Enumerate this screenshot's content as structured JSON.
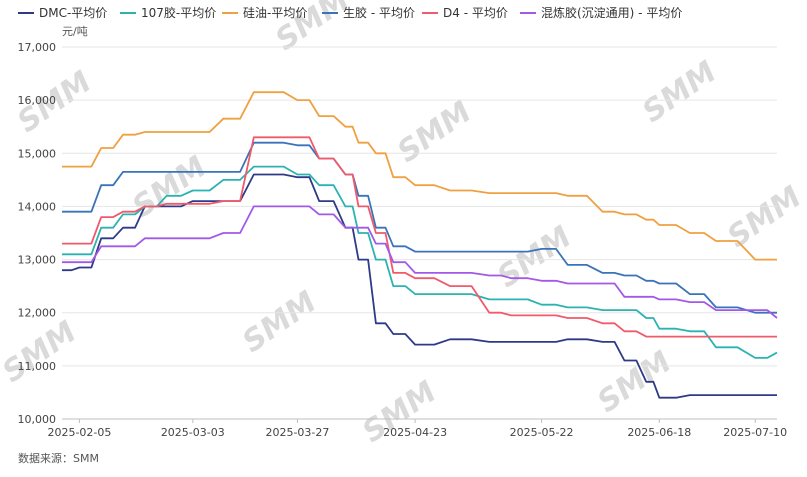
{
  "chart_data": {
    "type": "line",
    "ylabel": "元/吨",
    "ylim": [
      10000,
      17000
    ],
    "yticks": [
      10000,
      11000,
      12000,
      13000,
      14000,
      15000,
      16000,
      17000
    ],
    "ytick_labels": [
      "10,000",
      "11,000",
      "12,000",
      "13,000",
      "14,000",
      "15,000",
      "16,000",
      "17,000"
    ],
    "x_tick_labels": [
      "2025-02-05",
      "2025-03-03",
      "2025-03-27",
      "2025-04-23",
      "2025-05-22",
      "2025-06-18",
      "2025-07-10"
    ],
    "grid": true,
    "legend_position": "top",
    "source": "数据来源：SMM",
    "watermark": "SMM",
    "x": [
      "2025-02-01",
      "2025-02-05",
      "2025-02-10",
      "2025-02-15",
      "2025-02-20",
      "2025-02-25",
      "2025-03-03",
      "2025-03-10",
      "2025-03-17",
      "2025-03-20",
      "2025-03-27",
      "2025-04-01",
      "2025-04-07",
      "2025-04-10",
      "2025-04-14",
      "2025-04-18",
      "2025-04-23",
      "2025-05-01",
      "2025-05-10",
      "2025-05-15",
      "2025-05-22",
      "2025-05-28",
      "2025-06-05",
      "2025-06-10",
      "2025-06-15",
      "2025-06-18",
      "2025-06-25",
      "2025-07-01",
      "2025-07-10",
      "2025-07-15"
    ],
    "series": [
      {
        "name": "DMC-平均价",
        "color": "#2e3a87",
        "values": [
          12800,
          12850,
          13400,
          13600,
          14000,
          14000,
          14100,
          14100,
          14600,
          14600,
          14550,
          14100,
          13600,
          13000,
          11800,
          11600,
          11400,
          11500,
          11450,
          11450,
          11450,
          11500,
          11450,
          11100,
          10700,
          10400,
          10450,
          10450,
          10450,
          10450
        ]
      },
      {
        "name": "107胶-平均价",
        "color": "#2bb3b1",
        "values": [
          13100,
          13100,
          13600,
          13850,
          14000,
          14200,
          14300,
          14500,
          14750,
          14750,
          14600,
          14400,
          14000,
          13500,
          13000,
          12500,
          12350,
          12350,
          12250,
          12250,
          12150,
          12100,
          12050,
          12050,
          11900,
          11700,
          11650,
          11350,
          11150,
          11250
        ]
      },
      {
        "name": "硅油-平均价",
        "color": "#f0a040",
        "values": [
          14750,
          14750,
          15100,
          15350,
          15400,
          15400,
          15400,
          15650,
          16150,
          16150,
          16000,
          15700,
          15500,
          15200,
          15000,
          14550,
          14400,
          14300,
          14250,
          14250,
          14250,
          14200,
          13900,
          13850,
          13750,
          13650,
          13500,
          13350,
          13000,
          13000
        ]
      },
      {
        "name": "生胶 - 平均价",
        "color": "#3a73b8",
        "values": [
          13900,
          13900,
          14400,
          14650,
          14650,
          14650,
          14650,
          14650,
          15200,
          15200,
          15150,
          14900,
          14600,
          14200,
          13600,
          13250,
          13150,
          13150,
          13150,
          13150,
          13200,
          12900,
          12750,
          12700,
          12600,
          12550,
          12350,
          12100,
          12000,
          12000
        ]
      },
      {
        "name": "D4 - 平均价",
        "color": "#f05a6a",
        "values": [
          13300,
          13300,
          13800,
          13900,
          14000,
          14050,
          14050,
          14100,
          15300,
          15300,
          15300,
          14900,
          14600,
          14000,
          13500,
          12750,
          12650,
          12500,
          12000,
          11950,
          11950,
          11900,
          11800,
          11650,
          11550,
          11550,
          11550,
          11550,
          11550,
          11550
        ]
      },
      {
        "name": "混炼胶(沉淀通用) - 平均价",
        "color": "#a259e8",
        "values": [
          12950,
          12950,
          13250,
          13250,
          13400,
          13400,
          13400,
          13500,
          14000,
          14000,
          14000,
          13850,
          13600,
          13600,
          13300,
          12950,
          12750,
          12750,
          12700,
          12650,
          12600,
          12550,
          12550,
          12300,
          12300,
          12250,
          12200,
          12050,
          12050,
          11900
        ]
      }
    ]
  }
}
